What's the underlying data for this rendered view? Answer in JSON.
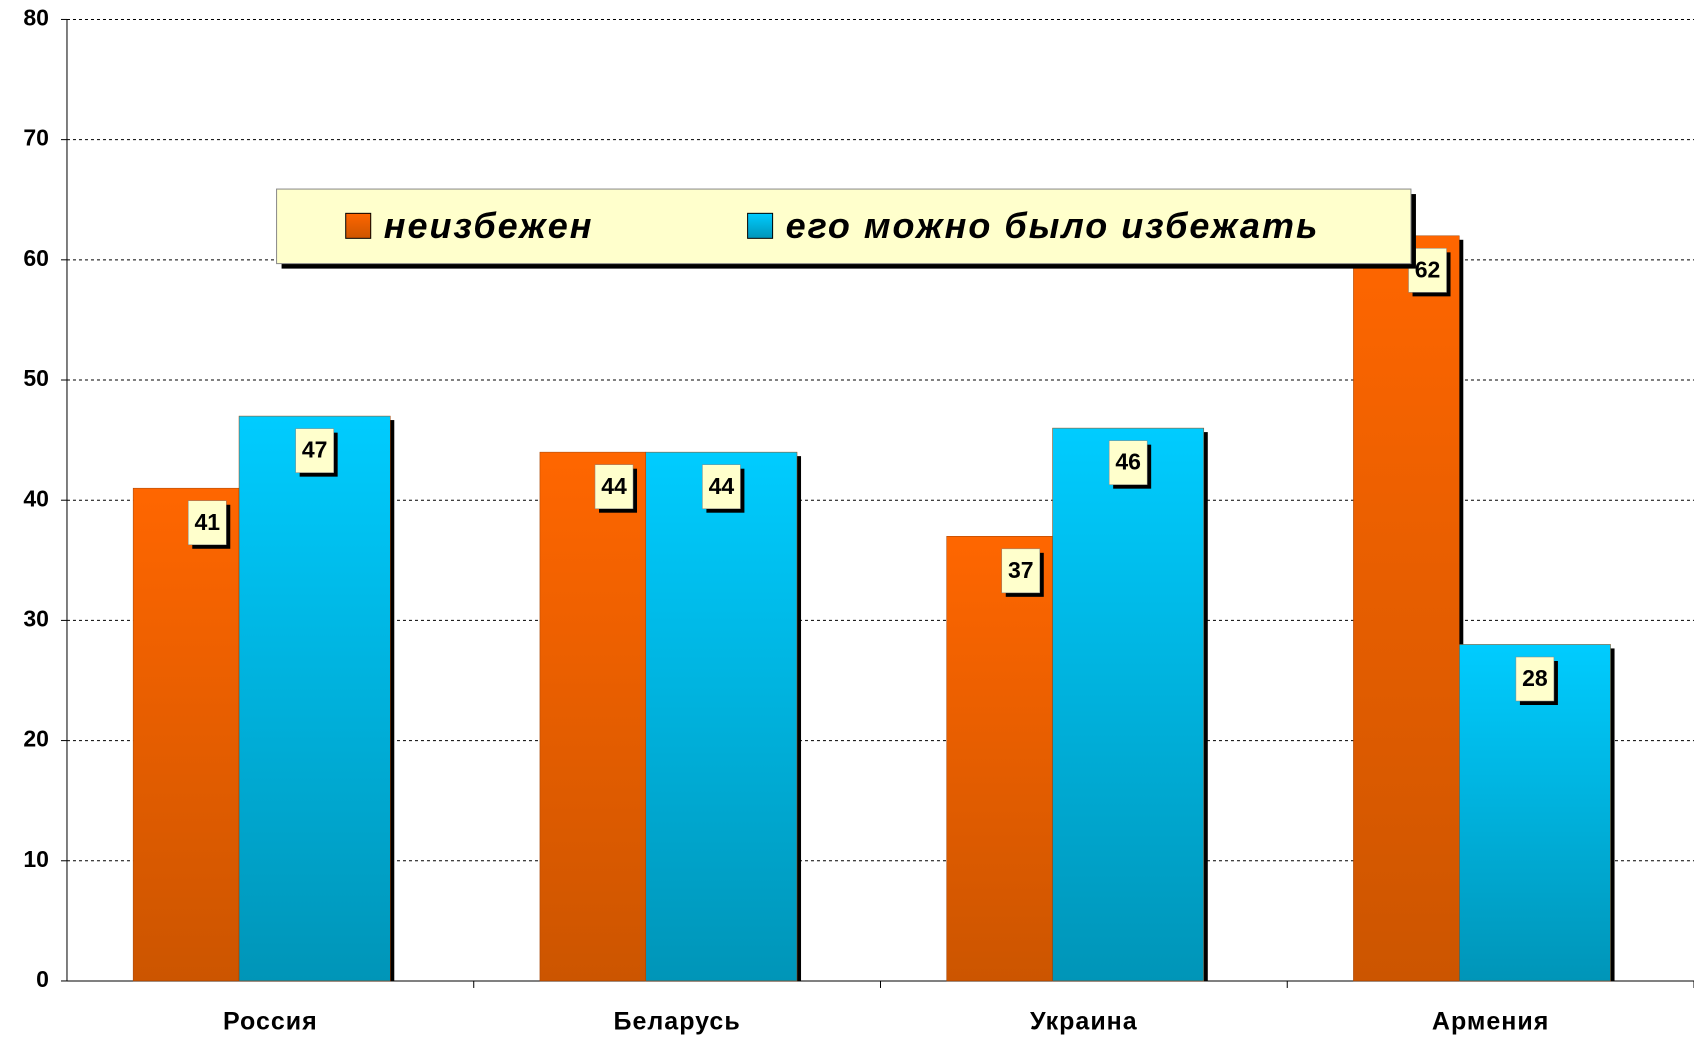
{
  "chart_data": {
    "type": "bar",
    "categories": [
      "Россия",
      "Беларусь",
      "Украина",
      "Армения"
    ],
    "series": [
      {
        "name": "неизбежен",
        "color": "#ff6600",
        "values": [
          41,
          44,
          37,
          62
        ]
      },
      {
        "name": "его можно было избежать",
        "color": "#00ccff",
        "values": [
          47,
          44,
          46,
          28
        ]
      }
    ],
    "ylim": [
      0,
      80
    ],
    "yticks": [
      0,
      10,
      20,
      30,
      40,
      50,
      60,
      70,
      80
    ],
    "grid": true,
    "legend": "top"
  }
}
